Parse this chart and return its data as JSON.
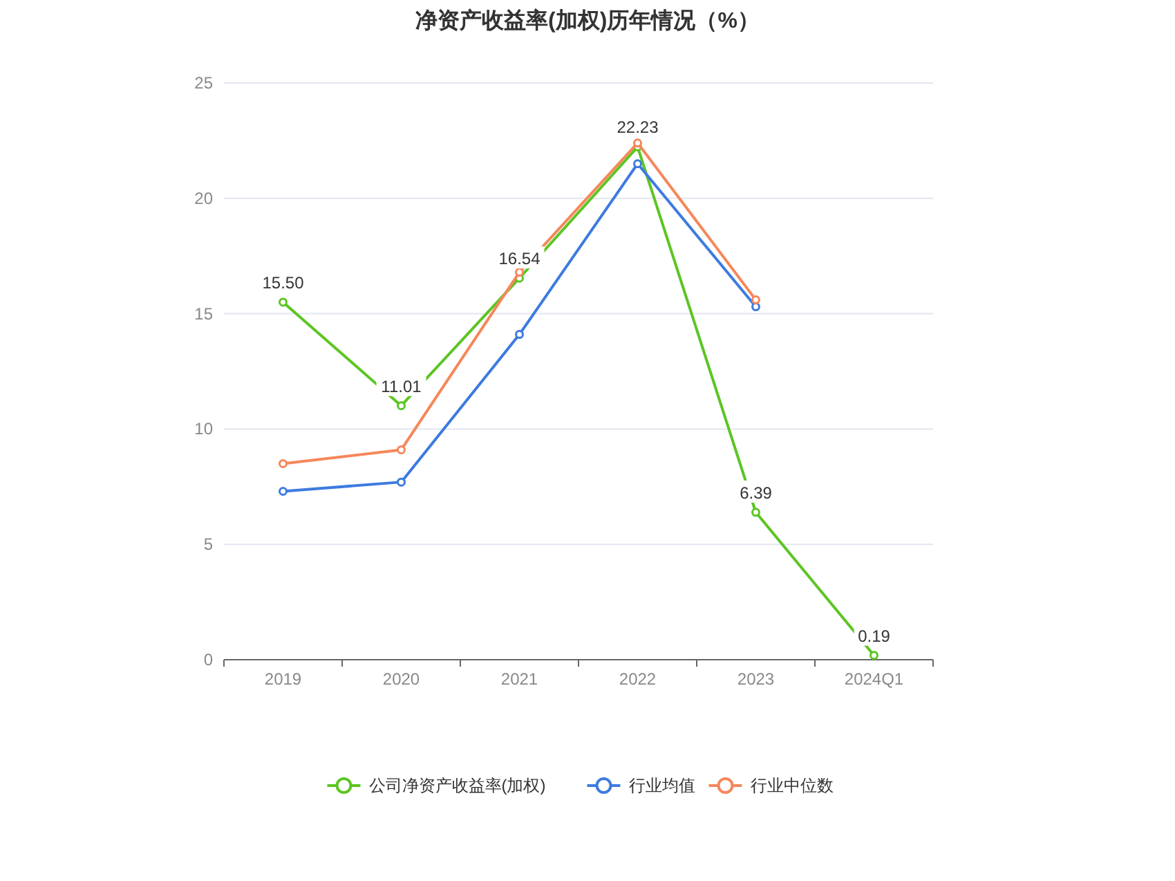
{
  "chart_data": {
    "type": "line",
    "title": "净资产收益率(加权)历年情况（%）",
    "categories": [
      "2019",
      "2020",
      "2021",
      "2022",
      "2023",
      "2024Q1"
    ],
    "series": [
      {
        "name": "公司净资产收益率(加权)",
        "color": "#5cc523",
        "values": [
          15.5,
          11.01,
          16.54,
          22.23,
          6.39,
          0.19
        ],
        "value_labels": [
          "15.50",
          "11.01",
          "16.54",
          "22.23",
          "6.39",
          "0.19"
        ]
      },
      {
        "name": "行业均值",
        "color": "#3d7be0",
        "values": [
          7.3,
          7.7,
          14.1,
          21.5,
          15.3,
          null
        ]
      },
      {
        "name": "行业中位数",
        "color": "#f5875a",
        "values": [
          8.5,
          9.1,
          16.8,
          22.4,
          15.6,
          null
        ]
      }
    ],
    "ylim": [
      0,
      25
    ],
    "yticks": [
      0,
      5,
      10,
      15,
      20,
      25
    ],
    "grid": "y",
    "legend": "bottom",
    "marker": "circle",
    "line_style": "solid"
  }
}
